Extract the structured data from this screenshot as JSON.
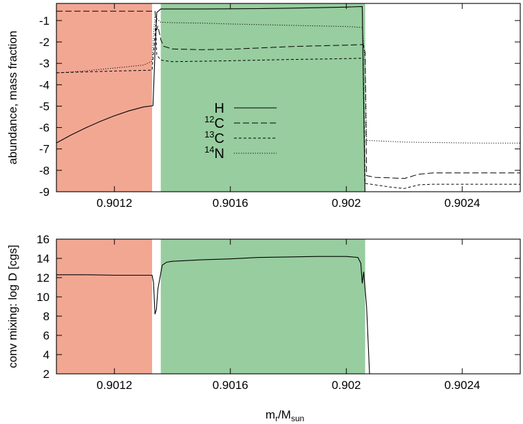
{
  "xlabel": {
    "main": "m",
    "sub_r": "r",
    "slash": "/M",
    "sub_sun": "sun"
  },
  "colors": {
    "band1": "#f2a793",
    "band2": "#97cd9f",
    "axis": "#000000"
  },
  "chart_data": [
    {
      "type": "line",
      "ylabel": "abundance, mass fraction",
      "xlim": [
        0.901,
        0.9026
      ],
      "ylim": [
        -9,
        -0.2
      ],
      "xticks": [
        0.9012,
        0.9016,
        0.902,
        0.9024
      ],
      "xtick_labels": [
        "0.9012",
        "0.9016",
        "0.902",
        "0.9024"
      ],
      "yticks": [
        -9,
        -8,
        -7,
        -6,
        -5,
        -4,
        -3,
        -2,
        -1
      ],
      "ytick_labels": [
        "-9",
        "-8",
        "-7",
        "-6",
        "-5",
        "-4",
        "-3",
        "-2",
        "-1"
      ],
      "bands": [
        {
          "x0": 0.901,
          "x1": 0.90133,
          "color": "#f2a793"
        },
        {
          "x0": 0.90136,
          "x1": 0.902065,
          "color": "#97cd9f"
        }
      ],
      "legend_position": "center-left",
      "series": [
        {
          "name": "H",
          "mass": "",
          "style": "solid",
          "x": [
            0.901,
            0.90105,
            0.9011,
            0.90115,
            0.9012,
            0.90125,
            0.9013,
            0.901333,
            0.90134,
            0.901346,
            0.90136,
            0.9014,
            0.9015,
            0.9016,
            0.9017,
            0.9018,
            0.9019,
            0.902,
            0.902055,
            0.902065
          ],
          "y": [
            -6.72,
            -6.35,
            -6.02,
            -5.72,
            -5.45,
            -5.22,
            -5.04,
            -4.98,
            -2.5,
            -0.62,
            -0.46,
            -0.46,
            -0.46,
            -0.45,
            -0.44,
            -0.42,
            -0.4,
            -0.37,
            -0.34,
            -9.5
          ]
        },
        {
          "name": "C",
          "mass": "12",
          "style": "dashed",
          "x": [
            0.901,
            0.9012,
            0.90133,
            0.90134,
            0.901343,
            0.901346,
            0.90135,
            0.90136,
            0.90137,
            0.9014,
            0.9015,
            0.9016,
            0.9017,
            0.9018,
            0.9019,
            0.902,
            0.902058,
            0.902065,
            0.90207,
            0.9021,
            0.90215,
            0.9022,
            0.90225,
            0.9023,
            0.9024,
            0.9025,
            0.9026
          ],
          "y": [
            -0.56,
            -0.56,
            -0.56,
            -0.56,
            -1.0,
            -1.45,
            -1.25,
            -1.9,
            -2.2,
            -2.33,
            -2.36,
            -2.34,
            -2.28,
            -2.22,
            -2.18,
            -2.15,
            -2.12,
            -2.5,
            -8.25,
            -8.33,
            -8.35,
            -8.38,
            -8.18,
            -8.12,
            -8.12,
            -8.12,
            -8.12
          ]
        },
        {
          "name": "C",
          "mass": "13",
          "style": "short-dash",
          "x": [
            0.901,
            0.9011,
            0.9012,
            0.90133,
            0.901338,
            0.901342,
            0.901346,
            0.90136,
            0.9014,
            0.9015,
            0.9016,
            0.9017,
            0.9018,
            0.9019,
            0.902,
            0.902058,
            0.902065,
            0.90207,
            0.9021,
            0.90215,
            0.9022,
            0.90225,
            0.9023,
            0.9024,
            0.9025,
            0.9026
          ],
          "y": [
            -3.44,
            -3.4,
            -3.36,
            -3.32,
            -2.0,
            -1.2,
            -2.6,
            -2.85,
            -2.92,
            -2.9,
            -2.88,
            -2.85,
            -2.82,
            -2.8,
            -2.78,
            -2.76,
            -8.6,
            -8.62,
            -8.68,
            -8.78,
            -8.85,
            -8.68,
            -8.65,
            -8.65,
            -8.65,
            -8.65
          ]
        },
        {
          "name": "N",
          "mass": "14",
          "style": "dotted",
          "x": [
            0.901,
            0.9011,
            0.9012,
            0.9013,
            0.90133,
            0.901335,
            0.90134,
            0.901345,
            0.90136,
            0.9014,
            0.9015,
            0.9016,
            0.9017,
            0.9018,
            0.9019,
            0.902,
            0.902055,
            0.902065,
            0.90207,
            0.9021,
            0.90215,
            0.9022,
            0.9023,
            0.9024,
            0.9025,
            0.9026
          ],
          "y": [
            -3.45,
            -3.35,
            -3.22,
            -3.08,
            -2.9,
            -1.6,
            -0.8,
            -0.9,
            -1.08,
            -1.1,
            -1.12,
            -1.16,
            -1.19,
            -1.22,
            -1.25,
            -1.28,
            -1.32,
            -3.0,
            -6.6,
            -6.62,
            -6.65,
            -6.68,
            -6.7,
            -6.72,
            -6.73,
            -6.73
          ]
        }
      ]
    },
    {
      "type": "line",
      "ylabel": "conv mixing: log D [cgs]",
      "xlim": [
        0.901,
        0.9026
      ],
      "ylim": [
        2,
        16
      ],
      "xticks": [
        0.9012,
        0.9016,
        0.902,
        0.9024
      ],
      "xtick_labels": [
        "0.9012",
        "0.9016",
        "0.902",
        "0.9024"
      ],
      "yticks": [
        2,
        4,
        6,
        8,
        10,
        12,
        14,
        16
      ],
      "ytick_labels": [
        "2",
        "4",
        "6",
        "8",
        "10",
        "12",
        "14",
        "16"
      ],
      "bands": [
        {
          "x0": 0.901,
          "x1": 0.90133,
          "color": "#f2a793"
        },
        {
          "x0": 0.90136,
          "x1": 0.902065,
          "color": "#97cd9f"
        }
      ],
      "series": [
        {
          "style": "solid",
          "x": [
            0.901,
            0.9011,
            0.9012,
            0.90133,
            0.901335,
            0.90134,
            0.901345,
            0.90135,
            0.90136,
            0.901365,
            0.90138,
            0.9014,
            0.9015,
            0.9016,
            0.9017,
            0.9018,
            0.9019,
            0.902,
            0.90204,
            0.90205,
            0.902055,
            0.90206,
            0.90207,
            0.90208
          ],
          "y": [
            12.3,
            12.3,
            12.25,
            12.25,
            11.5,
            8.2,
            8.7,
            10.8,
            12.5,
            13.3,
            13.6,
            13.7,
            13.85,
            13.95,
            14.1,
            14.15,
            14.2,
            14.2,
            14.1,
            13.5,
            11.4,
            12.6,
            9.0,
            2.0
          ]
        }
      ]
    }
  ]
}
